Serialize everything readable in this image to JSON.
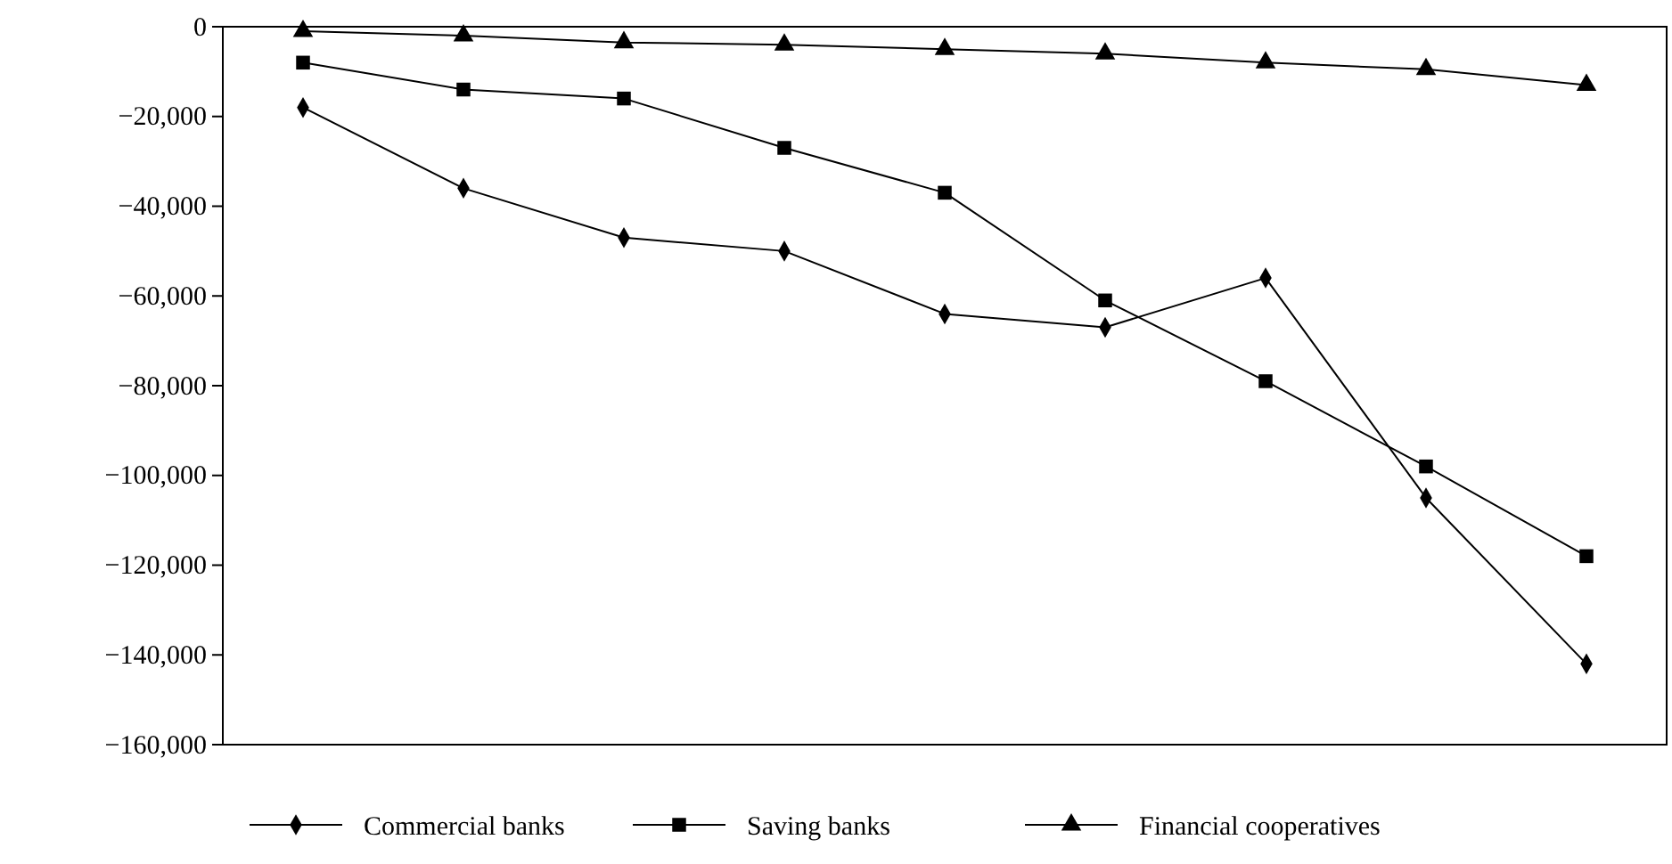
{
  "chart_data": {
    "type": "line",
    "categories": [
      null,
      null,
      null,
      null,
      null,
      null,
      null,
      null,
      null
    ],
    "ylim": [
      -160000,
      0
    ],
    "yticks": [
      {
        "value": -160000,
        "label": "−160,000"
      },
      {
        "value": -140000,
        "label": "−140,000"
      },
      {
        "value": -120000,
        "label": "−120,000"
      },
      {
        "value": -100000,
        "label": "−100,000"
      },
      {
        "value": -80000,
        "label": "−80,000"
      },
      {
        "value": -60000,
        "label": "−60,000"
      },
      {
        "value": -40000,
        "label": "−40,000"
      },
      {
        "value": -20000,
        "label": "−20,000"
      },
      0
    ],
    "legend": "bottom",
    "grid": false,
    "line_style": "solid",
    "series": [
      {
        "name": "Commercial banks",
        "color": "#000000",
        "marker": "diamond",
        "values": [
          -18000,
          -36000,
          -47000,
          -50000,
          -64000,
          -67000,
          -56000,
          -105000,
          -142000
        ]
      },
      {
        "name": "Saving banks",
        "color": "#000000",
        "marker": "square",
        "values": [
          -8000,
          -14000,
          -16000,
          -27000,
          -37000,
          -61000,
          -79000,
          -98000,
          -118000
        ]
      },
      {
        "name": "Financial cooperatives",
        "color": "#000000",
        "marker": "triangle",
        "values": [
          -1000,
          -2000,
          -3500,
          -4000,
          -5000,
          -6000,
          -8000,
          -9500,
          -13000
        ]
      }
    ]
  }
}
